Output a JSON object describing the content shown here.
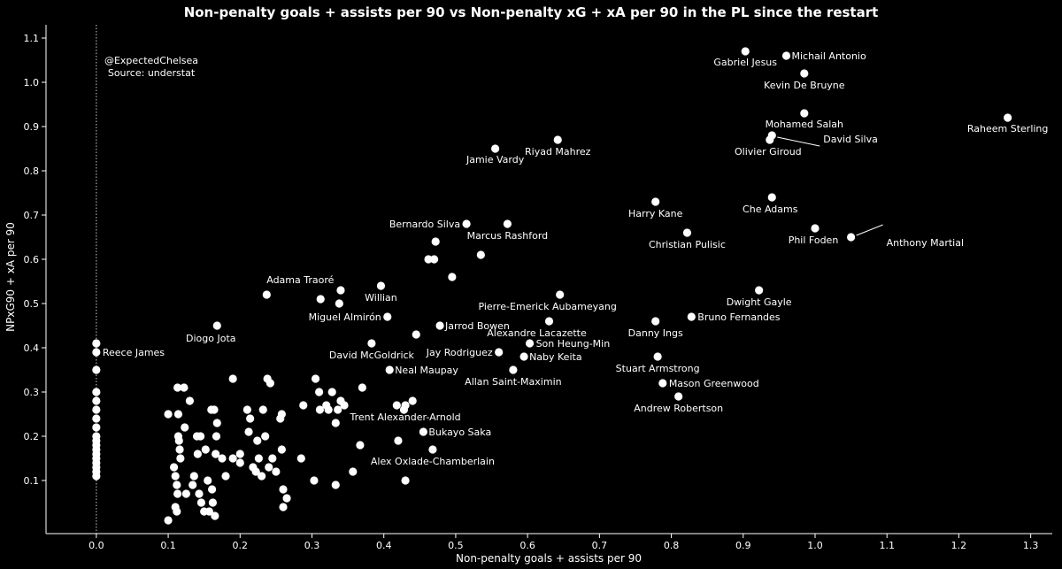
{
  "chart_data": {
    "type": "scatter",
    "title": "Non-penalty goals + assists per 90 vs Non-penalty xG + xA per 90 in the PL since the restart",
    "xlabel": "Non-penalty goals + assists per 90",
    "ylabel": "NPxG90 + xA per 90",
    "xlim": [
      -0.07,
      1.33
    ],
    "ylim": [
      -0.02,
      1.13
    ],
    "xticks": [
      "0.0",
      "0.1",
      "0.2",
      "0.3",
      "0.4",
      "0.5",
      "0.6",
      "0.7",
      "0.8",
      "0.9",
      "1.0",
      "1.1",
      "1.2",
      "1.3"
    ],
    "yticks": [
      "0.1",
      "0.2",
      "0.3",
      "0.4",
      "0.5",
      "0.6",
      "0.7",
      "0.8",
      "0.9",
      "1.0",
      "1.1"
    ],
    "credit_lines": [
      "@ExpectedChelsea",
      "Source: understat"
    ],
    "reference_line_x": 0.0,
    "labeled_points": [
      {
        "name": "Gabriel Jesus",
        "x": 0.903,
        "y": 1.07
      },
      {
        "name": "Michail Antonio",
        "x": 0.96,
        "y": 1.06
      },
      {
        "name": "Kevin De Bruyne",
        "x": 0.985,
        "y": 1.02
      },
      {
        "name": "Mohamed Salah",
        "x": 0.985,
        "y": 0.93
      },
      {
        "name": "Raheem Sterling",
        "x": 1.268,
        "y": 0.92
      },
      {
        "name": "Olivier Giroud",
        "x": 0.937,
        "y": 0.87
      },
      {
        "name": "David Silva",
        "x": 0.94,
        "y": 0.88
      },
      {
        "name": "Riyad Mahrez",
        "x": 0.642,
        "y": 0.87
      },
      {
        "name": "Jamie Vardy",
        "x": 0.555,
        "y": 0.85
      },
      {
        "name": "Harry Kane",
        "x": 0.778,
        "y": 0.73
      },
      {
        "name": "Che Adams",
        "x": 0.94,
        "y": 0.74
      },
      {
        "name": "Bernardo Silva",
        "x": 0.515,
        "y": 0.68
      },
      {
        "name": "Marcus Rashford",
        "x": 0.572,
        "y": 0.68
      },
      {
        "name": "Christian Pulisic",
        "x": 0.822,
        "y": 0.66
      },
      {
        "name": "Phil Foden",
        "x": 1.0,
        "y": 0.67
      },
      {
        "name": "Anthony Martial",
        "x": 1.05,
        "y": 0.65
      },
      {
        "name": "Adama Traoré",
        "x": 0.237,
        "y": 0.52
      },
      {
        "name": "Willian",
        "x": 0.396,
        "y": 0.54
      },
      {
        "name": "Dwight Gayle",
        "x": 0.922,
        "y": 0.53
      },
      {
        "name": "Pierre-Emerick Aubameyang",
        "x": 0.645,
        "y": 0.52
      },
      {
        "name": "Miguel Almirón",
        "x": 0.405,
        "y": 0.47
      },
      {
        "name": "Bruno Fernandes",
        "x": 0.828,
        "y": 0.47
      },
      {
        "name": "Diogo Jota",
        "x": 0.168,
        "y": 0.45
      },
      {
        "name": "Jarrod Bowen",
        "x": 0.478,
        "y": 0.45
      },
      {
        "name": "Danny Ings",
        "x": 0.778,
        "y": 0.46
      },
      {
        "name": "Alexandre Lacazette",
        "x": 0.63,
        "y": 0.46
      },
      {
        "name": "Son Heung-Min",
        "x": 0.603,
        "y": 0.41
      },
      {
        "name": "Reece James",
        "x": 0.0,
        "y": 0.39
      },
      {
        "name": "David McGoldrick",
        "x": 0.383,
        "y": 0.41
      },
      {
        "name": "Jay Rodriguez",
        "x": 0.56,
        "y": 0.39
      },
      {
        "name": "Naby Keita",
        "x": 0.595,
        "y": 0.38
      },
      {
        "name": "Stuart Armstrong",
        "x": 0.781,
        "y": 0.38
      },
      {
        "name": "Neal Maupay",
        "x": 0.408,
        "y": 0.35
      },
      {
        "name": "Allan Saint-Maximin",
        "x": 0.58,
        "y": 0.35
      },
      {
        "name": "Mason Greenwood",
        "x": 0.788,
        "y": 0.32
      },
      {
        "name": "Andrew Robertson",
        "x": 0.81,
        "y": 0.29
      },
      {
        "name": "Trent Alexander-Arnold",
        "x": 0.43,
        "y": 0.27
      },
      {
        "name": "Bukayo Saka",
        "x": 0.455,
        "y": 0.21
      },
      {
        "name": "Alex Oxlade-Chamberlain",
        "x": 0.468,
        "y": 0.17
      }
    ],
    "unlabeled_points": [
      [
        0.0,
        0.41
      ],
      [
        0.0,
        0.35
      ],
      [
        0.0,
        0.3
      ],
      [
        0.0,
        0.28
      ],
      [
        0.0,
        0.26
      ],
      [
        0.0,
        0.24
      ],
      [
        0.0,
        0.22
      ],
      [
        0.0,
        0.2
      ],
      [
        0.0,
        0.19
      ],
      [
        0.0,
        0.18
      ],
      [
        0.0,
        0.17
      ],
      [
        0.0,
        0.16
      ],
      [
        0.0,
        0.15
      ],
      [
        0.0,
        0.14
      ],
      [
        0.0,
        0.13
      ],
      [
        0.0,
        0.12
      ],
      [
        0.0,
        0.11
      ],
      [
        0.1,
        0.01
      ],
      [
        0.1,
        0.25
      ],
      [
        0.108,
        0.13
      ],
      [
        0.11,
        0.11
      ],
      [
        0.112,
        0.09
      ],
      [
        0.113,
        0.07
      ],
      [
        0.11,
        0.04
      ],
      [
        0.113,
        0.31
      ],
      [
        0.114,
        0.2
      ],
      [
        0.115,
        0.19
      ],
      [
        0.116,
        0.17
      ],
      [
        0.117,
        0.15
      ],
      [
        0.114,
        0.25
      ],
      [
        0.112,
        0.03
      ],
      [
        0.122,
        0.31
      ],
      [
        0.123,
        0.22
      ],
      [
        0.125,
        0.07
      ],
      [
        0.13,
        0.28
      ],
      [
        0.134,
        0.09
      ],
      [
        0.136,
        0.11
      ],
      [
        0.141,
        0.16
      ],
      [
        0.14,
        0.2
      ],
      [
        0.143,
        0.07
      ],
      [
        0.145,
        0.2
      ],
      [
        0.146,
        0.05
      ],
      [
        0.15,
        0.03
      ],
      [
        0.152,
        0.17
      ],
      [
        0.155,
        0.1
      ],
      [
        0.157,
        0.03
      ],
      [
        0.16,
        0.26
      ],
      [
        0.161,
        0.08
      ],
      [
        0.162,
        0.05
      ],
      [
        0.164,
        0.26
      ],
      [
        0.165,
        0.02
      ],
      [
        0.166,
        0.16
      ],
      [
        0.167,
        0.2
      ],
      [
        0.168,
        0.23
      ],
      [
        0.175,
        0.15
      ],
      [
        0.18,
        0.11
      ],
      [
        0.19,
        0.33
      ],
      [
        0.19,
        0.15
      ],
      [
        0.2,
        0.16
      ],
      [
        0.2,
        0.14
      ],
      [
        0.21,
        0.26
      ],
      [
        0.212,
        0.21
      ],
      [
        0.214,
        0.24
      ],
      [
        0.218,
        0.13
      ],
      [
        0.222,
        0.12
      ],
      [
        0.224,
        0.19
      ],
      [
        0.226,
        0.15
      ],
      [
        0.23,
        0.11
      ],
      [
        0.232,
        0.26
      ],
      [
        0.235,
        0.2
      ],
      [
        0.238,
        0.33
      ],
      [
        0.24,
        0.13
      ],
      [
        0.242,
        0.32
      ],
      [
        0.245,
        0.15
      ],
      [
        0.25,
        0.12
      ],
      [
        0.256,
        0.24
      ],
      [
        0.258,
        0.25
      ],
      [
        0.258,
        0.17
      ],
      [
        0.26,
        0.08
      ],
      [
        0.26,
        0.04
      ],
      [
        0.265,
        0.06
      ],
      [
        0.285,
        0.15
      ],
      [
        0.288,
        0.27
      ],
      [
        0.303,
        0.1
      ],
      [
        0.305,
        0.33
      ],
      [
        0.31,
        0.3
      ],
      [
        0.311,
        0.26
      ],
      [
        0.32,
        0.27
      ],
      [
        0.323,
        0.26
      ],
      [
        0.328,
        0.3
      ],
      [
        0.333,
        0.23
      ],
      [
        0.333,
        0.09
      ],
      [
        0.336,
        0.26
      ],
      [
        0.34,
        0.28
      ],
      [
        0.345,
        0.27
      ],
      [
        0.357,
        0.12
      ],
      [
        0.367,
        0.18
      ],
      [
        0.37,
        0.31
      ],
      [
        0.418,
        0.27
      ],
      [
        0.42,
        0.19
      ],
      [
        0.428,
        0.26
      ],
      [
        0.43,
        0.1
      ],
      [
        0.44,
        0.28
      ],
      [
        0.445,
        0.43
      ],
      [
        0.462,
        0.6
      ],
      [
        0.47,
        0.6
      ],
      [
        0.472,
        0.64
      ],
      [
        0.495,
        0.56
      ],
      [
        0.535,
        0.61
      ],
      [
        0.312,
        0.51
      ],
      [
        0.338,
        0.5
      ],
      [
        0.34,
        0.53
      ]
    ]
  }
}
